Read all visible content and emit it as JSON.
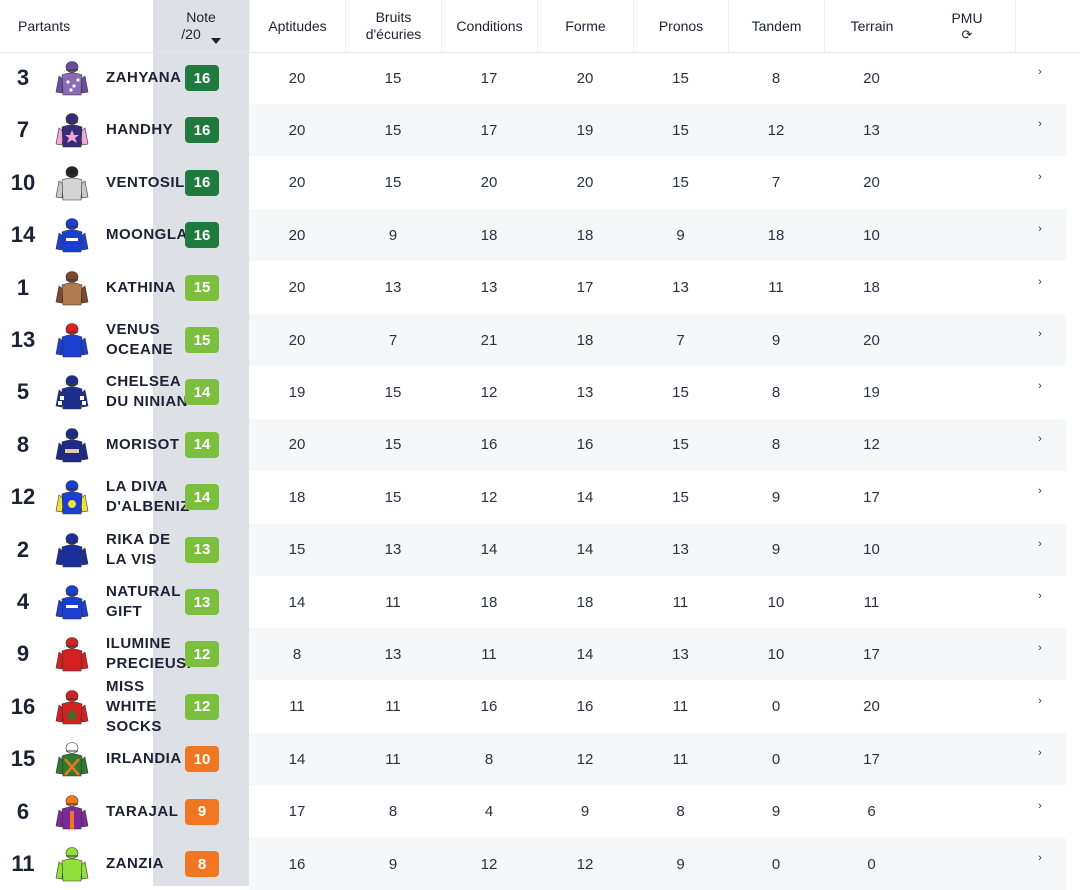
{
  "columns": {
    "partants": "Partants",
    "note_line1": "Note",
    "note_line2": "/20",
    "aptitudes": "Aptitudes",
    "bruits_line1": "Bruits",
    "bruits_line2": "d'écuries",
    "conditions": "Conditions",
    "forme": "Forme",
    "pronos": "Pronos",
    "tandem": "Tandem",
    "terrain": "Terrain",
    "pmu": "PMU",
    "refresh_icon": "⟳"
  },
  "colors": {
    "note_dark": "#1f7a3d",
    "note_mid": "#7cbf3f",
    "note_orange": "#f07621"
  },
  "rows": [
    {
      "num": "3",
      "name": "ZAHYANA",
      "note": "16",
      "tier": "dark",
      "apt": "20",
      "bruits": "15",
      "cond": "17",
      "forme": "20",
      "pronos": "15",
      "tandem": "8",
      "terrain": "20",
      "silk": {
        "body": "#8a6bb4",
        "sleeve": "#6d4e9e",
        "cap": "#6d4e9e",
        "pattern": "dots"
      }
    },
    {
      "num": "7",
      "name": "HANDHY",
      "note": "16",
      "tier": "dark",
      "apt": "20",
      "bruits": "15",
      "cond": "17",
      "forme": "19",
      "pronos": "15",
      "tandem": "12",
      "terrain": "13",
      "silk": {
        "body": "#3a2a7a",
        "sleeve": "#f0a8d6",
        "cap": "#3a2a7a",
        "pattern": "star"
      }
    },
    {
      "num": "10",
      "name": "VENTOSILLO",
      "note": "16",
      "tier": "dark",
      "apt": "20",
      "bruits": "15",
      "cond": "20",
      "forme": "20",
      "pronos": "15",
      "tandem": "7",
      "terrain": "20",
      "silk": {
        "body": "#d4d4d4",
        "sleeve": "#c8c8c8",
        "cap": "#222222",
        "pattern": "plain"
      }
    },
    {
      "num": "14",
      "name": "MOONGLADE",
      "note": "16",
      "tier": "dark",
      "apt": "20",
      "bruits": "9",
      "cond": "18",
      "forme": "18",
      "pronos": "9",
      "tandem": "18",
      "terrain": "10",
      "silk": {
        "body": "#1b3fd0",
        "sleeve": "#1b3fd0",
        "cap": "#1b3fd0",
        "pattern": "text"
      }
    },
    {
      "num": "1",
      "name": "KATHINA",
      "note": "15",
      "tier": "mid",
      "apt": "20",
      "bruits": "13",
      "cond": "13",
      "forme": "17",
      "pronos": "13",
      "tandem": "11",
      "terrain": "18",
      "silk": {
        "body": "#b07a4e",
        "sleeve": "#7a4a2a",
        "cap": "#7a4a2a",
        "pattern": "plain"
      }
    },
    {
      "num": "13",
      "name": "VENUS OCEANE",
      "note": "15",
      "tier": "mid",
      "apt": "20",
      "bruits": "7",
      "cond": "21",
      "forme": "18",
      "pronos": "7",
      "tandem": "9",
      "terrain": "20",
      "silk": {
        "body": "#1b3fd0",
        "sleeve": "#1b3fd0",
        "cap": "#e02020",
        "pattern": "plain"
      }
    },
    {
      "num": "5",
      "name": "CHELSEA DU NINIAN",
      "note": "14",
      "tier": "mid",
      "apt": "19",
      "bruits": "15",
      "cond": "12",
      "forme": "13",
      "pronos": "15",
      "tandem": "8",
      "terrain": "19",
      "silk": {
        "body": "#1b2f8a",
        "sleeve": "#1b2f8a",
        "cap": "#1b2f8a",
        "pattern": "check"
      }
    },
    {
      "num": "8",
      "name": "MORISOT",
      "note": "14",
      "tier": "mid",
      "apt": "20",
      "bruits": "15",
      "cond": "16",
      "forme": "16",
      "pronos": "15",
      "tandem": "8",
      "terrain": "12",
      "silk": {
        "body": "#1e2a88",
        "sleeve": "#1e2a88",
        "cap": "#1e2a88",
        "pattern": "band"
      }
    },
    {
      "num": "12",
      "name": "LA DIVA D'ALBENIZ",
      "note": "14",
      "tier": "mid",
      "apt": "18",
      "bruits": "15",
      "cond": "12",
      "forme": "14",
      "pronos": "15",
      "tandem": "9",
      "terrain": "17",
      "silk": {
        "body": "#1b3fd0",
        "sleeve": "#f2e03a",
        "cap": "#1b3fd0",
        "pattern": "circle"
      }
    },
    {
      "num": "2",
      "name": "RIKA DE LA VIS",
      "note": "13",
      "tier": "mid",
      "apt": "15",
      "bruits": "13",
      "cond": "14",
      "forme": "14",
      "pronos": "13",
      "tandem": "9",
      "terrain": "10",
      "silk": {
        "body": "#1b2f9a",
        "sleeve": "#1b2f9a",
        "cap": "#1b2f9a",
        "pattern": "plain"
      }
    },
    {
      "num": "4",
      "name": "NATURAL GIFT",
      "note": "13",
      "tier": "mid",
      "apt": "14",
      "bruits": "11",
      "cond": "18",
      "forme": "18",
      "pronos": "11",
      "tandem": "10",
      "terrain": "11",
      "silk": {
        "body": "#1b3fd0",
        "sleeve": "#1b3fd0",
        "cap": "#1b3fd0",
        "pattern": "text"
      }
    },
    {
      "num": "9",
      "name": "ILUMINE PRECIEUSE",
      "note": "12",
      "tier": "mid",
      "apt": "8",
      "bruits": "13",
      "cond": "11",
      "forme": "14",
      "pronos": "13",
      "tandem": "10",
      "terrain": "17",
      "silk": {
        "body": "#d42020",
        "sleeve": "#d42020",
        "cap": "#d42020",
        "pattern": "plain"
      }
    },
    {
      "num": "16",
      "name": "MISS WHITE SOCKS",
      "note": "12",
      "tier": "mid",
      "apt": "11",
      "bruits": "11",
      "cond": "16",
      "forme": "16",
      "pronos": "11",
      "tandem": "0",
      "terrain": "20",
      "silk": {
        "body": "#d42020",
        "sleeve": "#d42020",
        "cap": "#d42020",
        "pattern": "greenstar"
      }
    },
    {
      "num": "15",
      "name": "IRLANDIA",
      "note": "10",
      "tier": "orange",
      "apt": "14",
      "bruits": "11",
      "cond": "8",
      "forme": "12",
      "pronos": "11",
      "tandem": "0",
      "terrain": "17",
      "silk": {
        "body": "#2e7a2e",
        "sleeve": "#2e7a2e",
        "cap": "#ffffff",
        "pattern": "cross"
      }
    },
    {
      "num": "6",
      "name": "TARAJAL",
      "note": "9",
      "tier": "orange",
      "apt": "17",
      "bruits": "8",
      "cond": "4",
      "forme": "9",
      "pronos": "8",
      "tandem": "9",
      "terrain": "6",
      "silk": {
        "body": "#7a2a9a",
        "sleeve": "#7a2a9a",
        "cap": "#f07621",
        "pattern": "stripe"
      }
    },
    {
      "num": "11",
      "name": "ZANZIA",
      "note": "8",
      "tier": "orange",
      "apt": "16",
      "bruits": "9",
      "cond": "12",
      "forme": "12",
      "pronos": "9",
      "tandem": "0",
      "terrain": "0",
      "silk": {
        "body": "#8fe03a",
        "sleeve": "#8fe03a",
        "cap": "#8fe03a",
        "pattern": "plain"
      }
    }
  ]
}
